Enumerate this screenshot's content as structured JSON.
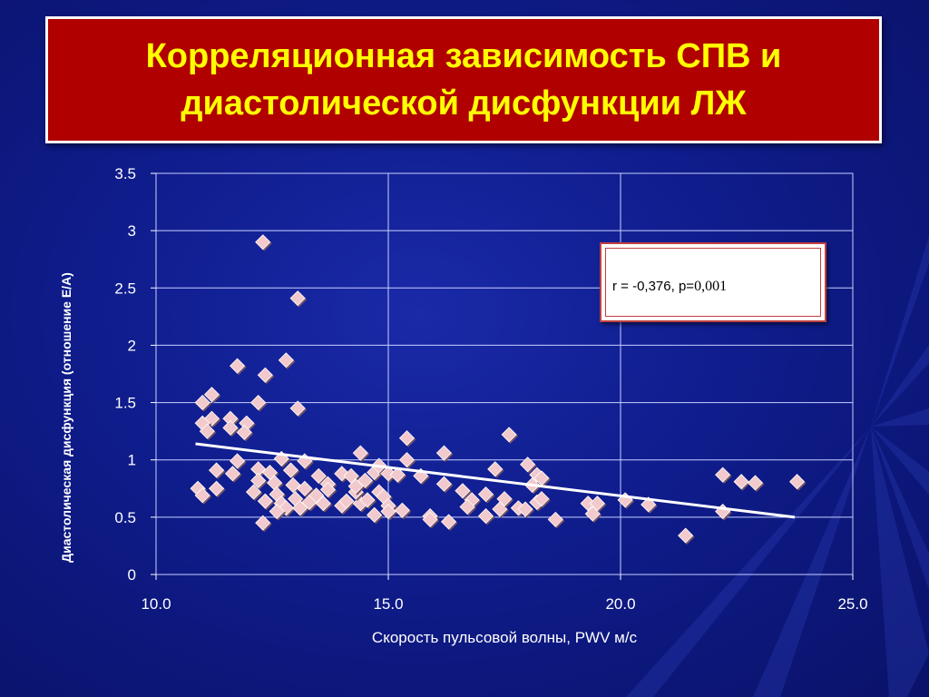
{
  "title": {
    "line1": "Корреляционная зависимость СПВ и",
    "line2": "диастолической дисфункции ЛЖ"
  },
  "annotation": {
    "prefix": "r = -0,376, p=",
    "value": "0,001"
  },
  "colors": {
    "title_background": "#b00000",
    "title_text": "#ffff00",
    "marker": "#f2c9cc",
    "trendline": "#ffffff",
    "text": "#ffffff"
  },
  "chart_data": {
    "type": "scatter",
    "xlabel": "Скорость пульсовой волны, PWV м/с",
    "ylabel": "Диастолическая дисфункция (отношение  Е/А)",
    "xlim": [
      10,
      25
    ],
    "ylim": [
      0,
      3.5
    ],
    "x_ticks": [
      "10.0",
      "15.0",
      "20.0",
      "25.0"
    ],
    "x_tick_values": [
      10,
      15,
      20,
      25
    ],
    "y_ticks": [
      "0",
      "0.5",
      "1",
      "1.5",
      "2",
      "2.5",
      "3",
      "3.5"
    ],
    "y_tick_values": [
      0,
      0.5,
      1,
      1.5,
      2,
      2.5,
      3,
      3.5
    ],
    "grid": true,
    "marker": "diamond",
    "trendline": {
      "x": [
        10.85,
        23.75
      ],
      "y": [
        1.14,
        0.5
      ]
    },
    "points": [
      [
        12.3,
        2.9
      ],
      [
        13.05,
        2.41
      ],
      [
        12.8,
        1.87
      ],
      [
        11.75,
        1.82
      ],
      [
        12.35,
        1.74
      ],
      [
        11.2,
        1.57
      ],
      [
        11.0,
        1.5
      ],
      [
        12.2,
        1.5
      ],
      [
        13.05,
        1.45
      ],
      [
        11.2,
        1.36
      ],
      [
        11.6,
        1.36
      ],
      [
        11.0,
        1.32
      ],
      [
        11.95,
        1.32
      ],
      [
        11.6,
        1.28
      ],
      [
        11.1,
        1.25
      ],
      [
        11.9,
        1.24
      ],
      [
        11.75,
        0.99
      ],
      [
        12.7,
        1.01
      ],
      [
        13.2,
        0.99
      ],
      [
        11.3,
        0.91
      ],
      [
        11.65,
        0.88
      ],
      [
        12.2,
        0.92
      ],
      [
        12.45,
        0.89
      ],
      [
        12.9,
        0.91
      ],
      [
        12.2,
        0.82
      ],
      [
        12.55,
        0.8
      ],
      [
        12.95,
        0.78
      ],
      [
        13.2,
        0.75
      ],
      [
        13.5,
        0.86
      ],
      [
        13.7,
        0.79
      ],
      [
        14.0,
        0.88
      ],
      [
        14.2,
        0.86
      ],
      [
        14.4,
        1.06
      ],
      [
        14.5,
        0.82
      ],
      [
        14.7,
        0.89
      ],
      [
        14.8,
        0.95
      ],
      [
        15.0,
        0.88
      ],
      [
        15.2,
        0.87
      ],
      [
        15.4,
        1.0
      ],
      [
        15.4,
        1.19
      ],
      [
        15.7,
        0.86
      ],
      [
        10.9,
        0.75
      ],
      [
        11.0,
        0.69
      ],
      [
        11.3,
        0.75
      ],
      [
        12.1,
        0.72
      ],
      [
        12.35,
        0.64
      ],
      [
        12.6,
        0.7
      ],
      [
        12.7,
        0.62
      ],
      [
        12.8,
        0.58
      ],
      [
        13.0,
        0.66
      ],
      [
        13.1,
        0.58
      ],
      [
        13.3,
        0.63
      ],
      [
        13.45,
        0.69
      ],
      [
        13.6,
        0.62
      ],
      [
        14.0,
        0.6
      ],
      [
        14.1,
        0.64
      ],
      [
        14.4,
        0.62
      ],
      [
        14.55,
        0.65
      ],
      [
        14.7,
        0.52
      ],
      [
        14.8,
        0.72
      ],
      [
        14.9,
        0.68
      ],
      [
        15.0,
        0.6
      ],
      [
        15.0,
        0.55
      ],
      [
        15.3,
        0.56
      ],
      [
        12.3,
        0.45
      ],
      [
        12.6,
        0.55
      ],
      [
        14.3,
        0.72
      ],
      [
        14.3,
        0.77
      ],
      [
        13.7,
        0.74
      ],
      [
        15.9,
        0.51
      ],
      [
        15.9,
        0.48
      ],
      [
        16.3,
        0.46
      ],
      [
        16.2,
        1.06
      ],
      [
        16.2,
        0.79
      ],
      [
        16.6,
        0.73
      ],
      [
        16.8,
        0.65
      ],
      [
        16.7,
        0.59
      ],
      [
        17.1,
        0.7
      ],
      [
        17.1,
        0.51
      ],
      [
        17.3,
        0.92
      ],
      [
        17.4,
        0.57
      ],
      [
        17.5,
        0.66
      ],
      [
        17.6,
        1.22
      ],
      [
        17.8,
        0.58
      ],
      [
        17.95,
        0.57
      ],
      [
        18.0,
        0.96
      ],
      [
        18.1,
        0.78
      ],
      [
        18.2,
        0.87
      ],
      [
        18.3,
        0.84
      ],
      [
        18.2,
        0.63
      ],
      [
        18.3,
        0.66
      ],
      [
        18.6,
        0.48
      ],
      [
        19.3,
        0.62
      ],
      [
        19.4,
        0.53
      ],
      [
        19.5,
        0.62
      ],
      [
        20.1,
        0.65
      ],
      [
        20.6,
        0.61
      ],
      [
        21.4,
        0.34
      ],
      [
        22.2,
        0.87
      ],
      [
        22.2,
        0.55
      ],
      [
        22.6,
        0.81
      ],
      [
        22.9,
        0.8
      ],
      [
        23.8,
        0.81
      ]
    ]
  }
}
